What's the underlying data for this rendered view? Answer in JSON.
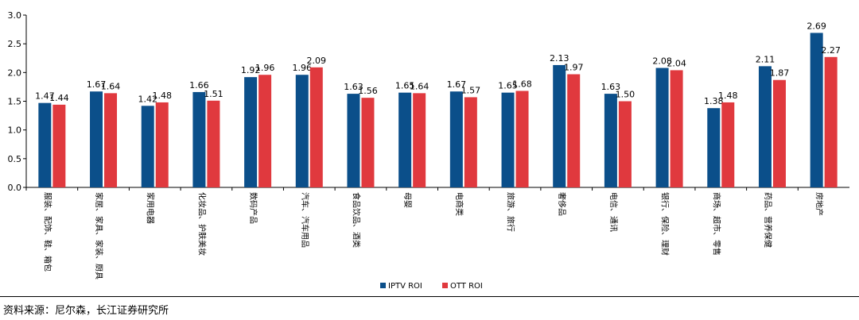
{
  "chart_data": {
    "type": "bar",
    "categories": [
      "服装、配饰、鞋、箱包",
      "家居、家具、家装、厨具",
      "家用电器",
      "化妆品、护肤美妆",
      "数码产品",
      "汽车、汽车用品",
      "食品饮品、酒类",
      "母婴",
      "电商类",
      "旅游、旅行",
      "奢侈品",
      "电信、通讯",
      "银行、保险、理财",
      "商场、超市、零售",
      "药品、营养保健",
      "房地产"
    ],
    "series": [
      {
        "name": "IPTV ROI",
        "color": "#0B4F8A",
        "values": [
          1.47,
          1.67,
          1.42,
          1.66,
          1.92,
          1.96,
          1.63,
          1.65,
          1.67,
          1.65,
          2.13,
          1.63,
          2.08,
          1.38,
          2.11,
          2.69
        ]
      },
      {
        "name": "OTT ROI",
        "color": "#E0393E",
        "values": [
          1.44,
          1.64,
          1.48,
          1.51,
          1.96,
          2.09,
          1.56,
          1.64,
          1.57,
          1.68,
          1.97,
          1.5,
          2.04,
          1.48,
          1.87,
          2.27
        ]
      }
    ],
    "ylim": [
      0,
      3
    ],
    "yticks": [
      "0.0",
      "0.5",
      "1.0",
      "1.5",
      "2.0",
      "2.5",
      "3.0"
    ],
    "grid": false,
    "legend_position": "bottom-center"
  },
  "source_note": "资料来源：尼尔森，长江证券研究所"
}
